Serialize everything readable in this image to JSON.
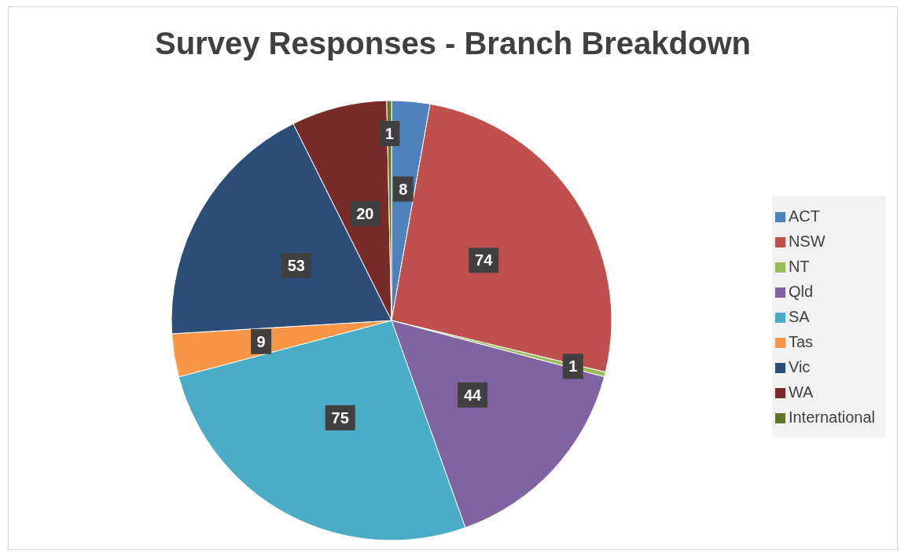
{
  "chart_data": {
    "type": "pie",
    "title": "Survey Responses - Branch Breakdown",
    "categories": [
      "ACT",
      "NSW",
      "NT",
      "Qld",
      "SA",
      "Tas",
      "Vic",
      "WA",
      "International"
    ],
    "values": [
      8,
      74,
      1,
      44,
      75,
      9,
      53,
      20,
      1
    ],
    "colors": [
      "#4f81bd",
      "#c0504d",
      "#9bbb59",
      "#8064a2",
      "#4bacc6",
      "#f79646",
      "#2c4d75",
      "#772c2a",
      "#5f7530"
    ],
    "data_labels": true,
    "legend": "right"
  }
}
